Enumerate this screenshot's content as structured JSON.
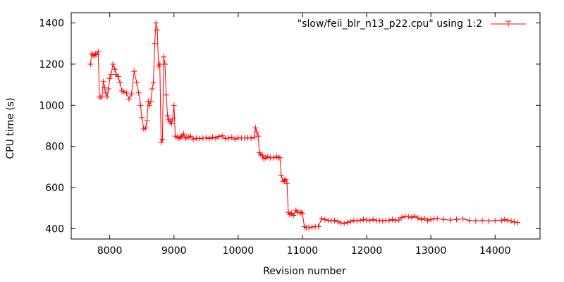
{
  "chart_data": {
    "type": "line",
    "title": "",
    "xlabel": "Revision number",
    "ylabel": "CPU time (s)",
    "xlim": [
      7400,
      14700
    ],
    "ylim": [
      350,
      1450
    ],
    "x_ticks": [
      8000,
      9000,
      10000,
      11000,
      12000,
      13000,
      14000
    ],
    "y_ticks": [
      400,
      600,
      800,
      1000,
      1200,
      1400
    ],
    "grid": false,
    "legend_position": "top-right",
    "marker": "plus",
    "series": [
      {
        "name": "\"slow/feii_blr_n13_p22.cpu\" using 1:2",
        "color": "#ff0000",
        "x": [
          7700,
          7720,
          7740,
          7760,
          7780,
          7800,
          7820,
          7840,
          7860,
          7880,
          7900,
          7920,
          7940,
          7960,
          7980,
          8000,
          8020,
          8050,
          8080,
          8100,
          8130,
          8160,
          8190,
          8220,
          8260,
          8300,
          8340,
          8380,
          8420,
          8450,
          8480,
          8500,
          8530,
          8560,
          8580,
          8600,
          8620,
          8640,
          8660,
          8680,
          8700,
          8720,
          8740,
          8760,
          8780,
          8800,
          8820,
          8840,
          8860,
          8880,
          8900,
          8920,
          8940,
          8960,
          8980,
          9000,
          9020,
          9050,
          9080,
          9100,
          9120,
          9150,
          9180,
          9200,
          9230,
          9260,
          9300,
          9350,
          9400,
          9450,
          9500,
          9550,
          9600,
          9650,
          9700,
          9750,
          9800,
          9850,
          9900,
          9950,
          10000,
          10050,
          10100,
          10150,
          10200,
          10250,
          10270,
          10290,
          10310,
          10330,
          10350,
          10380,
          10400,
          10430,
          10460,
          10500,
          10550,
          10600,
          10630,
          10650,
          10670,
          10700,
          10720,
          10740,
          10760,
          10780,
          10800,
          10830,
          10860,
          10900,
          10930,
          10960,
          10980,
          11000,
          11030,
          11060,
          11100,
          11150,
          11200,
          11250,
          11300,
          11350,
          11400,
          11450,
          11500,
          11550,
          11600,
          11650,
          11700,
          11750,
          11800,
          11850,
          11900,
          11950,
          12000,
          12050,
          12100,
          12150,
          12200,
          12250,
          12300,
          12350,
          12400,
          12450,
          12500,
          12550,
          12600,
          12650,
          12700,
          12750,
          12800,
          12850,
          12900,
          12950,
          13000,
          13050,
          13100,
          13200,
          13300,
          13400,
          13500,
          13600,
          13700,
          13800,
          13900,
          14000,
          14100,
          14150,
          14200,
          14250,
          14300,
          14350
        ],
        "y": [
          1200,
          1250,
          1245,
          1240,
          1250,
          1248,
          1260,
          1040,
          1040,
          1040,
          1115,
          1085,
          1060,
          1040,
          1080,
          1130,
          1150,
          1200,
          1175,
          1150,
          1140,
          1110,
          1070,
          1065,
          1060,
          1030,
          1055,
          1165,
          1110,
          1060,
          1000,
          940,
          885,
          890,
          925,
          1020,
          1000,
          1020,
          1080,
          1110,
          1300,
          1400,
          1365,
          1190,
          1200,
          820,
          835,
          1235,
          1200,
          1050,
          950,
          930,
          920,
          910,
          935,
          1000,
          850,
          845,
          840,
          845,
          850,
          860,
          840,
          845,
          845,
          850,
          835,
          840,
          838,
          840,
          842,
          838,
          845,
          840,
          848,
          852,
          838,
          840,
          845,
          835,
          842,
          840,
          840,
          842,
          840,
          845,
          890,
          870,
          850,
          770,
          760,
          755,
          740,
          745,
          750,
          745,
          745,
          750,
          745,
          745,
          660,
          630,
          635,
          640,
          620,
          480,
          470,
          475,
          465,
          490,
          480,
          478,
          480,
          475,
          410,
          405,
          405,
          408,
          410,
          410,
          450,
          445,
          440,
          438,
          440,
          435,
          428,
          425,
          430,
          435,
          440,
          438,
          440,
          445,
          442,
          440,
          445,
          440,
          440,
          438,
          440,
          440,
          445,
          440,
          442,
          455,
          460,
          458,
          455,
          462,
          452,
          445,
          450,
          440,
          445,
          448,
          450,
          445,
          442,
          445,
          448,
          440,
          438,
          440,
          438,
          440,
          440,
          445,
          440,
          438,
          432,
          430
        ]
      }
    ]
  }
}
